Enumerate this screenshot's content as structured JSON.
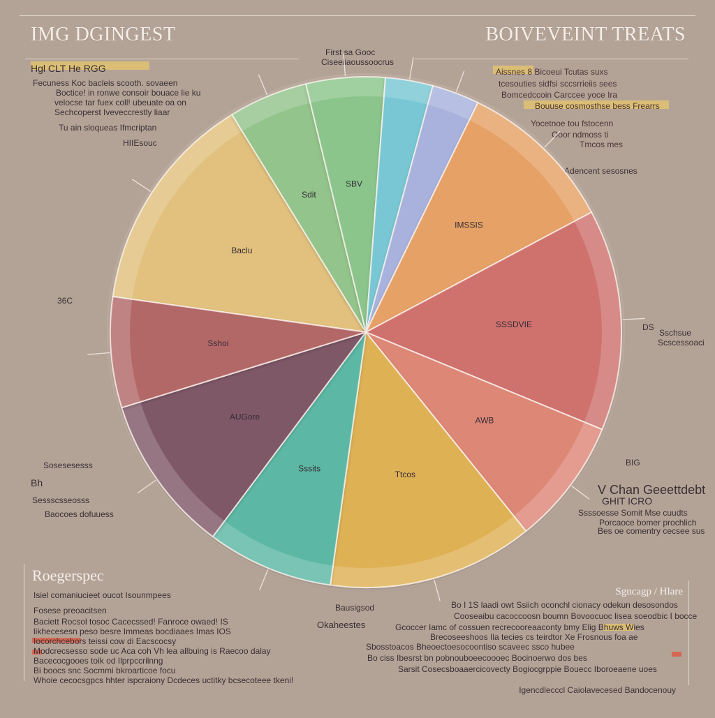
{
  "titles": {
    "left": "IMG DGINGEST",
    "right": "BOIVEVEINT TREATS"
  },
  "left_panel": {
    "header": "Hgl CLT He RGG",
    "lines": [
      "Fecuness Koc bacleis scooth. sovaeen",
      "Boctice! in ronwe consoir bouace lie ku",
      "velocse tar fuex coll! ubeuate oa on",
      "Sechcoperst Iveveccrestly liaar",
      "Tu ain sloqueas Ifmcriptan"
    ],
    "callout": "HIIEsouc"
  },
  "right_panel": {
    "lines": [
      "Aissnes 8 Bicoeui Tcutas suxs",
      "tcesouties sidfsi sccsrrieiis sees",
      "Bomcedccoin Carccee yoce Ira",
      "Bouuse cosmosthse bess Frearrs",
      "Yocetnoe tou fstocenn",
      "Ooor ndmoss ti",
      "Tmcos mes"
    ],
    "callout": "Adencent sesosnes"
  },
  "top_callout": {
    "line1": "First sa Gooc",
    "line2": "Ciseeiiaoussoocrus"
  },
  "side_labels": {
    "left_mid": "36C",
    "right_mid_a": "DS",
    "right_mid_b": "Sschsue",
    "right_mid_c": "Scscessoaci",
    "left_lower_a": "Sosesesesss",
    "left_lower_b": "Bh",
    "left_lower_c": "Sessscsseosss",
    "left_lower_d": "Baocoes dofuuess"
  },
  "right_callout": {
    "big": "V Chan Geeettdebt",
    "mid": "GHIT ICRO",
    "tag": "BIG",
    "line1": "Ssssoesse Somit Mse cuudts",
    "line2": "Porcaoce bomer prochlich",
    "line3": "Bes oe comentry cecsee sus"
  },
  "bottom_left": {
    "title": "Roegerspec",
    "lines": [
      "Isiel comaniucieet oucot Isounmpees",
      "Fosese preoacitsen",
      "Baciett Rocsol tosoc Cacecssed! Fanroce owaed! IS",
      "likhecesesn peso besre Immeas bocdiaaes Imas IOS",
      "Iocorchcebors teissi cow di Eacscocsy",
      "Modcrecsesso sode uc Aca coh Vh lea allbuing is Raecoo dalay",
      "Bacecocgooes toik od Ilprpccrilnng",
      "Bi boocs snc Socmmi bkroarticoe focu",
      "Whoie cecocsgpcs hhter ispcraiony Dcdeces uctitky bcsecoteee tkeni!"
    ]
  },
  "bottom_center": {
    "line1": "Bausigsod",
    "line2": "Okaheestes"
  },
  "bottom_right": {
    "title": "Sgncagp / Hlare",
    "lines": [
      "Bo I 1S laadi owt Ssiich oconchl cionacy odekun desosondos",
      "Cooseaibu cacoccoosn boumn Bovoocuoc lisea soeodbic I bocce",
      "Gcoccer Iamc of cossuen recrecooreaaconty bmy Elig Bhuws Wies",
      "Brecoseeshoos Ila tecies cs teirdtor Xe Frosnous foa ae",
      "Sbosstoacos Bheoectoesocoontiso scaveec ssco hubee",
      "Bo ciss Ibesrst bn pobnouboeecoooec Bocinoerwo dos bes",
      "Sarsit Cosecsboaaercicovecty Bogiocgrppie Bouecc Iboroeaene uoes"
    ]
  },
  "footer": "Igencdlecccl Caiolavecesed Bandocenouy",
  "chart_data": {
    "type": "pie",
    "title": "",
    "slices": [
      {
        "label": "Baclu",
        "value": 14,
        "color": "#e1c17d"
      },
      {
        "label": "Sdit",
        "value": 5,
        "color": "#93c48b"
      },
      {
        "label": "SBV",
        "value": 5,
        "color": "#8bc58c"
      },
      {
        "label": "",
        "value": 3,
        "color": "#79c7d4"
      },
      {
        "label": "",
        "value": 3,
        "color": "#a8b2dc"
      },
      {
        "label": "IMSSIS",
        "value": 10,
        "color": "#e6a166"
      },
      {
        "label": "SSSDVIE",
        "value": 14,
        "color": "#cf726e"
      },
      {
        "label": "AWB",
        "value": 8,
        "color": "#dd8777"
      },
      {
        "label": "Ttcos",
        "value": 13,
        "color": "#deb154"
      },
      {
        "label": "Sssits",
        "value": 8,
        "color": "#5cb8a5"
      },
      {
        "label": "AUGore",
        "value": 10,
        "color": "#7f5867"
      },
      {
        "label": "Sshoi",
        "value": 7,
        "color": "#b36768"
      }
    ]
  }
}
